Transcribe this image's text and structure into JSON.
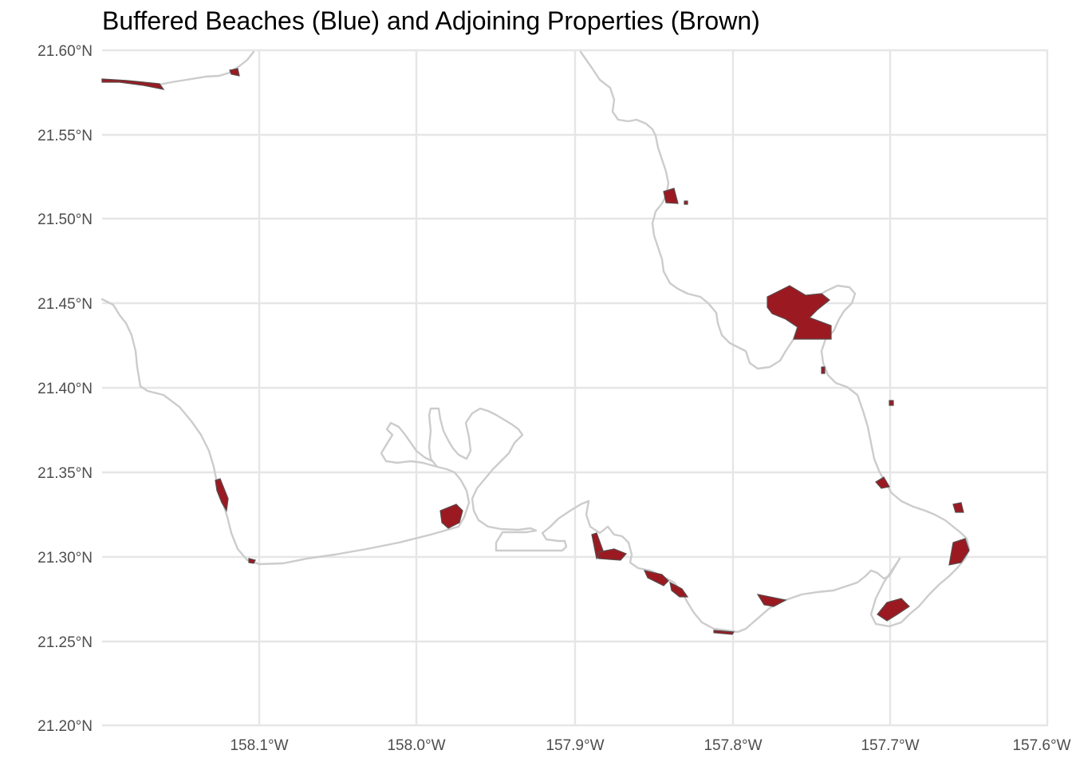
{
  "title": "Buffered Beaches (Blue) and Adjoining Properties (Brown)",
  "axes": {
    "x_ticks": [
      "158.1°W",
      "158.0°W",
      "157.9°W",
      "157.8°W",
      "157.7°W",
      "157.6°W"
    ],
    "y_ticks": [
      "21.60°N",
      "21.55°N",
      "21.50°N",
      "21.45°N",
      "21.40°N",
      "21.35°N",
      "21.30°N",
      "21.25°N",
      "21.20°N"
    ]
  },
  "colors": {
    "coastline": "#cccccc",
    "property_fill": "#9b1a22",
    "property_outline": "#5a4a4a",
    "grid": "#e6e6e6"
  },
  "layers": [
    "coastline",
    "buffered-beaches",
    "adjoining-properties"
  ]
}
